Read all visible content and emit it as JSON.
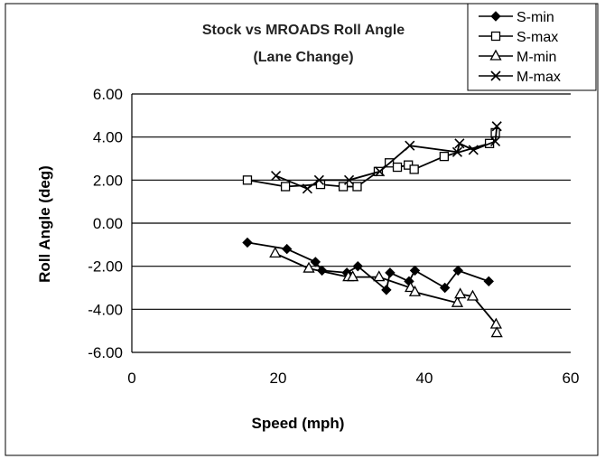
{
  "chart_data": {
    "type": "line",
    "title": "Stock vs MROADS Roll Angle",
    "subtitle": "(Lane Change)",
    "xlabel": "Speed (mph)",
    "ylabel": "Roll Angle (deg)",
    "xlim": [
      0,
      60
    ],
    "ylim": [
      -6,
      6
    ],
    "xticks": [
      "0",
      "20",
      "40",
      "60"
    ],
    "yticks": [
      "6.00",
      "4.00",
      "2.00",
      "0.00",
      "-2.00",
      "-4.00",
      "-6.00"
    ],
    "grid": "horizontal",
    "legend_position": "top-right",
    "series": [
      {
        "name": "S-min",
        "marker": "diamond-filled",
        "color": "#000000",
        "points": [
          [
            15.8,
            -0.9
          ],
          [
            21.2,
            -1.2
          ],
          [
            25.1,
            -1.8
          ],
          [
            26.0,
            -2.2
          ],
          [
            29.4,
            -2.3
          ],
          [
            30.9,
            -2.0
          ],
          [
            34.8,
            -3.1
          ],
          [
            35.3,
            -2.3
          ],
          [
            37.9,
            -2.7
          ],
          [
            38.7,
            -2.2
          ],
          [
            42.8,
            -3.0
          ],
          [
            44.6,
            -2.2
          ],
          [
            48.8,
            -2.7
          ]
        ]
      },
      {
        "name": "S-max",
        "marker": "square-open",
        "color": "#000000",
        "points": [
          [
            15.8,
            2.0
          ],
          [
            21.0,
            1.7
          ],
          [
            25.8,
            1.8
          ],
          [
            28.9,
            1.7
          ],
          [
            30.8,
            1.7
          ],
          [
            33.7,
            2.4
          ],
          [
            35.2,
            2.8
          ],
          [
            36.3,
            2.6
          ],
          [
            37.8,
            2.7
          ],
          [
            38.6,
            2.5
          ],
          [
            42.7,
            3.1
          ],
          [
            48.9,
            3.7
          ],
          [
            49.7,
            4.2
          ]
        ]
      },
      {
        "name": "M-min",
        "marker": "triangle-open",
        "color": "#000000",
        "points": [
          [
            19.6,
            -1.4
          ],
          [
            24.2,
            -2.1
          ],
          [
            29.6,
            -2.5
          ],
          [
            30.2,
            -2.5
          ],
          [
            33.8,
            -2.5
          ],
          [
            38.1,
            -3.0
          ],
          [
            38.7,
            -3.2
          ],
          [
            44.5,
            -3.7
          ],
          [
            44.9,
            -3.3
          ],
          [
            46.6,
            -3.4
          ],
          [
            49.8,
            -4.7
          ],
          [
            49.9,
            -5.1
          ]
        ]
      },
      {
        "name": "M-max",
        "marker": "x",
        "color": "#000000",
        "points": [
          [
            19.7,
            2.2
          ],
          [
            24.0,
            1.6
          ],
          [
            25.6,
            2.0
          ],
          [
            29.7,
            2.0
          ],
          [
            33.9,
            2.4
          ],
          [
            38.0,
            3.6
          ],
          [
            44.5,
            3.3
          ],
          [
            44.8,
            3.7
          ],
          [
            46.7,
            3.4
          ],
          [
            49.7,
            3.8
          ],
          [
            49.9,
            4.5
          ]
        ]
      }
    ]
  }
}
